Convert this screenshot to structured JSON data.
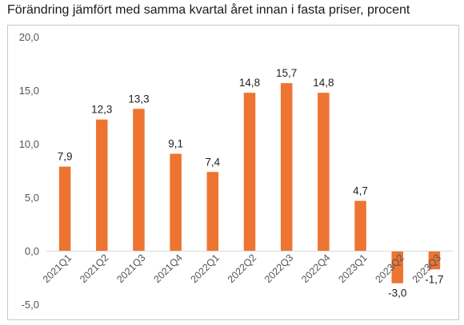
{
  "chart_data": {
    "type": "bar",
    "title": "Förändring jämfört med samma kvartal året innan i fasta priser, procent",
    "categories": [
      "2021Q1",
      "2021Q2",
      "2021Q3",
      "2021Q4",
      "2022Q1",
      "2022Q2",
      "2022Q3",
      "2022Q4",
      "2023Q1",
      "2023Q2",
      "2023Q3"
    ],
    "values": [
      7.9,
      12.3,
      13.3,
      9.1,
      7.4,
      14.8,
      15.7,
      14.8,
      4.7,
      -3.0,
      -1.7
    ],
    "value_labels": [
      "7,9",
      "12,3",
      "13,3",
      "9,1",
      "7,4",
      "14,8",
      "15,7",
      "14,8",
      "4,7",
      "-3,0",
      "-1,7"
    ],
    "y_ticks": [
      -5,
      0,
      5,
      10,
      15,
      20
    ],
    "y_tick_labels": [
      "-5,0",
      "0,0",
      "5,0",
      "10,0",
      "15,0",
      "20,0"
    ],
    "ylim": [
      -5,
      20
    ],
    "xlabel": "",
    "ylabel": "",
    "grid": false,
    "legend": "none",
    "bar_color": "#ED7431",
    "axis_color": "#d9d9d9"
  }
}
